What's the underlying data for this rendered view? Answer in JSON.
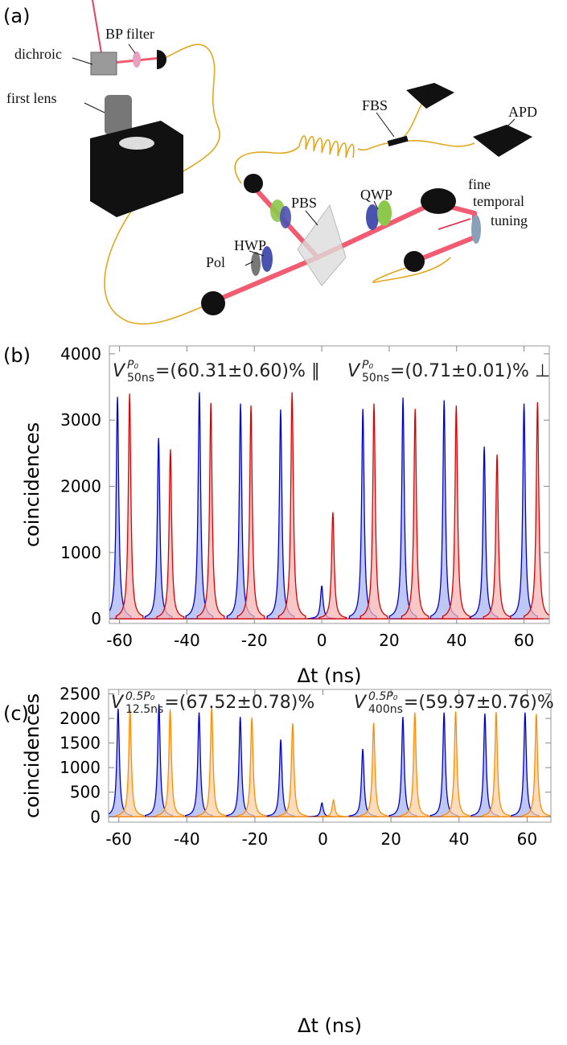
{
  "diagram": {
    "panel_label": "(a)",
    "labels": [
      "dichroic",
      "BP filter",
      "first lens",
      "FBS",
      "APD",
      "PBS",
      "QWP",
      "fine",
      "temporal",
      "tuning",
      "Pol",
      "HWP"
    ]
  },
  "chart_data": [
    {
      "type": "peak",
      "panel_label": "(b)",
      "xlabel": "Δt (ns)",
      "ylabel": "coincidences",
      "xlim": [
        -63,
        67.5
      ],
      "ylim": [
        -70,
        4120
      ],
      "xticks": [
        -60,
        -40,
        -20,
        0,
        20,
        40,
        60
      ],
      "yticks": [
        0,
        1000,
        2000,
        3000,
        4000
      ],
      "annotations": [
        {
          "symbol": "V",
          "sup": "P₀",
          "sub": "50ns",
          "text": "=(60.31±0.60)% ∥"
        },
        {
          "symbol": "V",
          "sup": "P₀",
          "sub": "50ns",
          "text": "=(0.71±0.01)% ⊥"
        }
      ],
      "series": [
        {
          "color": "#0000cc",
          "fill": "#aab4f0",
          "x": [
            -60.6,
            -48.4,
            -36.3,
            -24.1,
            -12.2,
            0,
            12.2,
            24.1,
            36.3,
            48.2,
            60.0
          ],
          "values": [
            3350,
            2730,
            3420,
            3250,
            3160,
            500,
            3170,
            3340,
            3300,
            2600,
            3250
          ]
        },
        {
          "color": "#dd0000",
          "fill": "#f5b4b4",
          "x": [
            -57.0,
            -44.9,
            -32.9,
            -21.0,
            -8.8,
            3.3,
            15.5,
            27.7,
            39.9,
            52.0,
            64.0
          ],
          "values": [
            3400,
            2560,
            3260,
            3220,
            3420,
            1610,
            3250,
            3170,
            3220,
            2480,
            3270
          ]
        }
      ]
    },
    {
      "type": "peak",
      "panel_label": "(c)",
      "xlabel": "Δt (ns)",
      "ylabel": "coincidences",
      "xlim": [
        -63,
        67
      ],
      "ylim": [
        -110,
        2590
      ],
      "xticks": [
        -60,
        -40,
        -20,
        0,
        20,
        40,
        60
      ],
      "yticks": [
        0,
        500,
        1000,
        1500,
        2000,
        2500
      ],
      "annotations": [
        {
          "symbol": "V",
          "sup": "0.5P₀",
          "sub": "12.5ns",
          "text": "=(67.52±0.78)%"
        },
        {
          "symbol": "V",
          "sup": "0.5P₀",
          "sub": "400ns",
          "text": "=(59.97±0.76)%"
        }
      ],
      "series": [
        {
          "color": "#0000cc",
          "fill": "#aab4f0",
          "x": [
            -60.2,
            -48.2,
            -36.4,
            -24.3,
            -12.4,
            -0.3,
            11.7,
            23.5,
            35.6,
            47.6,
            59.4
          ],
          "values": [
            2200,
            2290,
            2120,
            2030,
            1570,
            280,
            1380,
            2030,
            2120,
            2100,
            2120
          ]
        },
        {
          "color": "#ff8c00",
          "fill": "#fad2a8",
          "x": [
            -56.7,
            -44.9,
            -32.7,
            -20.9,
            -8.9,
            3.1,
            14.9,
            27.0,
            39.0,
            50.9,
            62.7
          ],
          "values": [
            2180,
            2180,
            2230,
            2020,
            1900,
            340,
            1910,
            2120,
            2140,
            2130,
            2090
          ]
        }
      ]
    }
  ]
}
